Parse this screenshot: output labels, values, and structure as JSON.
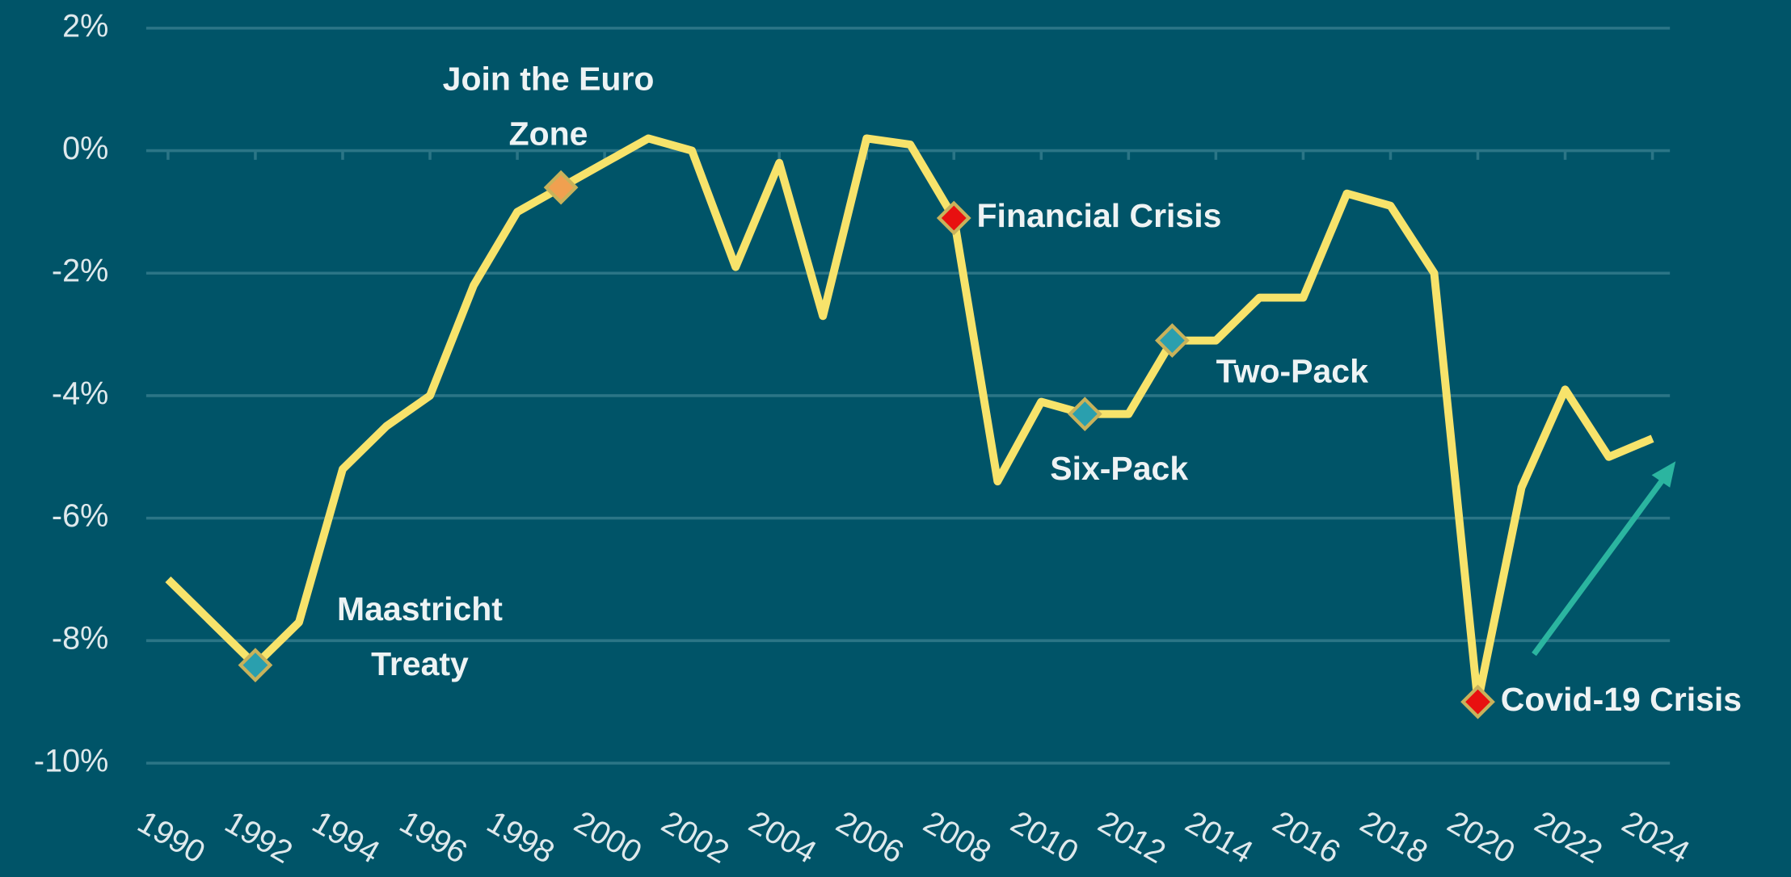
{
  "chart_data": {
    "type": "line",
    "x": [
      1990,
      1991,
      1992,
      1993,
      1994,
      1995,
      1996,
      1997,
      1998,
      1999,
      2000,
      2001,
      2002,
      2003,
      2004,
      2005,
      2006,
      2007,
      2008,
      2009,
      2010,
      2011,
      2012,
      2013,
      2014,
      2015,
      2016,
      2017,
      2018,
      2019,
      2020,
      2021,
      2022,
      2023,
      2024
    ],
    "series": [
      {
        "color": "#f7e36b",
        "values": [
          -7.0,
          -7.7,
          -8.4,
          -7.7,
          -5.2,
          -4.5,
          -4.0,
          -2.2,
          -1.0,
          -0.6,
          -0.2,
          0.2,
          0.0,
          -1.9,
          -0.2,
          -2.7,
          0.2,
          0.1,
          -1.1,
          -5.4,
          -4.1,
          -4.3,
          -4.3,
          -3.1,
          -3.1,
          -2.4,
          -2.4,
          -0.7,
          -0.9,
          -2.0,
          -9.0,
          -5.5,
          -3.9,
          -5.0,
          -4.7
        ]
      }
    ],
    "xlim": [
      1989.5,
      2024.4
    ],
    "xticks": [
      1990,
      1992,
      1994,
      1996,
      1998,
      2000,
      2002,
      2004,
      2006,
      2008,
      2010,
      2012,
      2014,
      2016,
      2018,
      2020,
      2022,
      2024
    ],
    "ylim": [
      -10.7,
      2.4
    ],
    "yticks": [
      {
        "value": 2,
        "label": "2%"
      },
      {
        "value": 0,
        "label": "0%"
      },
      {
        "value": -2,
        "label": "-2%"
      },
      {
        "value": -4,
        "label": "-4%"
      },
      {
        "value": -6,
        "label": "-6%"
      },
      {
        "value": -8,
        "label": "-8%"
      },
      {
        "value": -10,
        "label": "-10%"
      }
    ],
    "grid": true,
    "annotations": [
      {
        "x": 1992,
        "lines": [
          "Maastricht",
          "Treaty"
        ],
        "color": "#2a9fae"
      },
      {
        "x": 1999,
        "lines": [
          "Join the Euro",
          "Zone"
        ],
        "color": "#f0a050"
      },
      {
        "x": 2008,
        "lines": [
          "Financial Crisis"
        ],
        "color": "#e81010"
      },
      {
        "x": 2011,
        "lines": [
          "Six-Pack"
        ],
        "color": "#2a9fae"
      },
      {
        "x": 2013,
        "lines": [
          "Two-Pack"
        ],
        "color": "#2a9fae"
      },
      {
        "x": 2020,
        "lines": [
          "Covid-19 Crisis"
        ],
        "color": "#e81010"
      }
    ]
  }
}
